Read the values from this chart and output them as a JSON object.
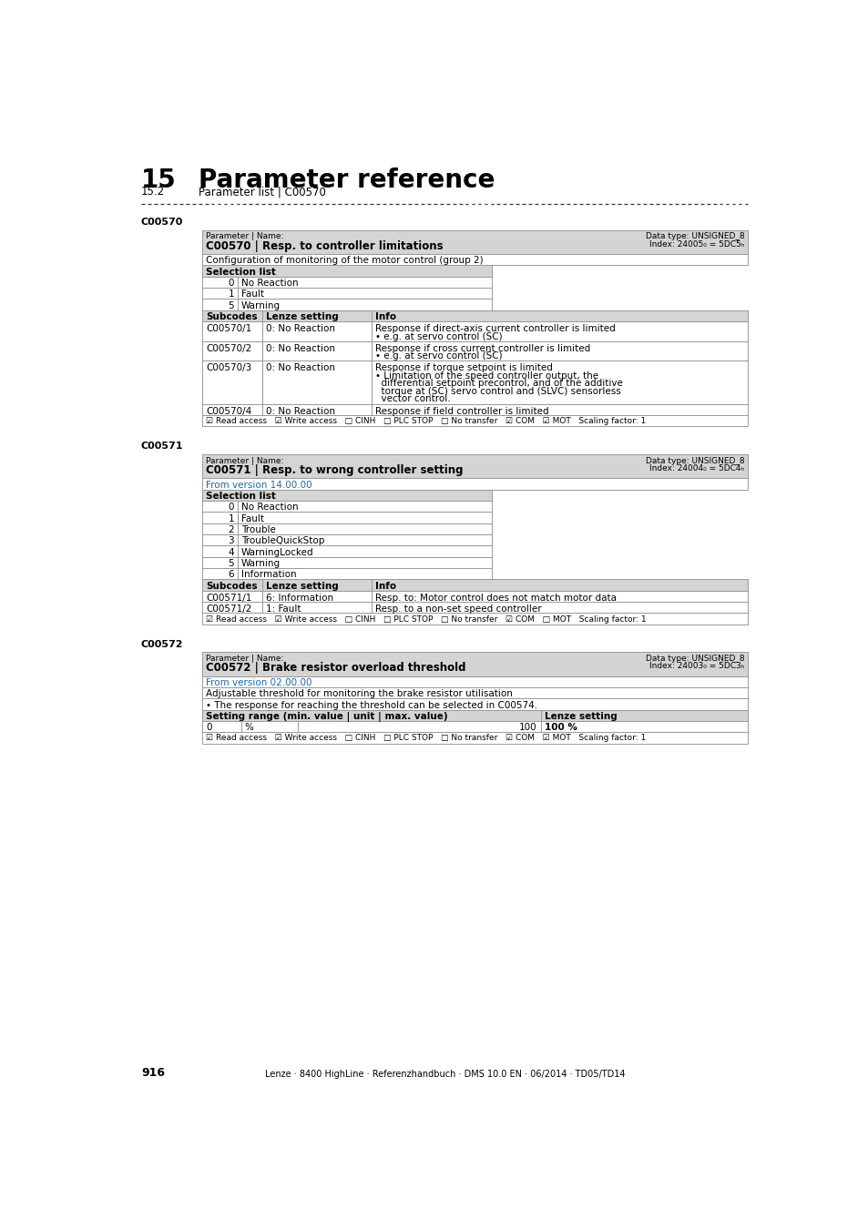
{
  "page_num": "916",
  "footer_text": "Lenze · 8400 HighLine · Referenzhandbuch · DMS 10.0 EN · 06/2014 · TD05/TD14",
  "chapter_num": "15",
  "chapter_title": "Parameter reference",
  "section_num": "15.2",
  "section_title": "Parameter list | C00570",
  "c570_param_label": "Parameter | Name:",
  "c570_param_bold": "C00570 | Resp. to controller limitations",
  "c570_data_type": "Data type: UNSIGNED_8",
  "c570_index": "Index: 24005₀ = 5DC5ₕ",
  "c570_desc": "Configuration of monitoring of the motor control (group 2)",
  "c570_sel_header": "Selection list",
  "c570_selections": [
    [
      "0",
      "No Reaction"
    ],
    [
      "1",
      "Fault"
    ],
    [
      "5",
      "Warning"
    ]
  ],
  "c570_sub_headers": [
    "Subcodes",
    "Lenze setting",
    "Info"
  ],
  "c570_subcodes": [
    [
      "C00570/1",
      "0: No Reaction",
      "Response if direct-axis current controller is limited\n• e.g. at servo control (SC)"
    ],
    [
      "C00570/2",
      "0: No Reaction",
      "Response if cross current controller is limited\n• e.g. at servo control (SC)"
    ],
    [
      "C00570/3",
      "0: No Reaction",
      "Response if torque setpoint is limited\n• Limitation of the speed controller output, the\n  differential setpoint precontrol, and of the additive\n  torque at (SC) servo control and (SLVC) sensorless\n  vector control."
    ],
    [
      "C00570/4",
      "0: No Reaction",
      "Response if field controller is limited"
    ]
  ],
  "c570_footer": "☑ Read access   ☑ Write access   □ CINH   □ PLC STOP   □ No transfer   ☑ COM   ☑ MOT   Scaling factor: 1",
  "c571_param_label": "Parameter | Name:",
  "c571_param_bold": "C00571 | Resp. to wrong controller setting",
  "c571_data_type": "Data type: UNSIGNED_8",
  "c571_index": "Index: 24004₀ = 5DC4ₕ",
  "c571_version": "From version 14.00.00",
  "c571_sel_header": "Selection list",
  "c571_selections": [
    [
      "0",
      "No Reaction"
    ],
    [
      "1",
      "Fault"
    ],
    [
      "2",
      "Trouble"
    ],
    [
      "3",
      "TroubleQuickStop"
    ],
    [
      "4",
      "WarningLocked"
    ],
    [
      "5",
      "Warning"
    ],
    [
      "6",
      "Information"
    ]
  ],
  "c571_sub_headers": [
    "Subcodes",
    "Lenze setting",
    "Info"
  ],
  "c571_subcodes": [
    [
      "C00571/1",
      "6: Information",
      "Resp. to: Motor control does not match motor data"
    ],
    [
      "C00571/2",
      "1: Fault",
      "Resp. to a non-set speed controller"
    ]
  ],
  "c571_footer": "☑ Read access   ☑ Write access   □ CINH   □ PLC STOP   □ No transfer   ☑ COM   □ MOT   Scaling factor: 1",
  "c572_param_label": "Parameter | Name:",
  "c572_param_bold": "C00572 | Brake resistor overload threshold",
  "c572_data_type": "Data type: UNSIGNED_8",
  "c572_index": "Index: 24003₀ = 5DC3ₕ",
  "c572_version": "From version 02.00.00",
  "c572_desc1": "Adjustable threshold for monitoring the brake resistor utilisation",
  "c572_desc2": "• The response for reaching the threshold can be selected in C00574.",
  "c572_setting_header": "Setting range (min. value | unit | max. value)",
  "c572_lenze_header": "Lenze setting",
  "c572_setting_row": [
    "0",
    "%",
    "100",
    "100 %"
  ],
  "c572_footer": "☑ Read access   ☑ Write access   □ CINH   □ PLC STOP   □ No transfer   ☑ COM   ☑ MOT   Scaling factor: 1",
  "bg_header": "#d4d4d4",
  "bg_white": "#ffffff",
  "color_version": "#1a6aaf",
  "color_blue_link": "#1a6aaf",
  "color_black": "#000000",
  "table_border": "#999999",
  "table_lw": 0.7
}
